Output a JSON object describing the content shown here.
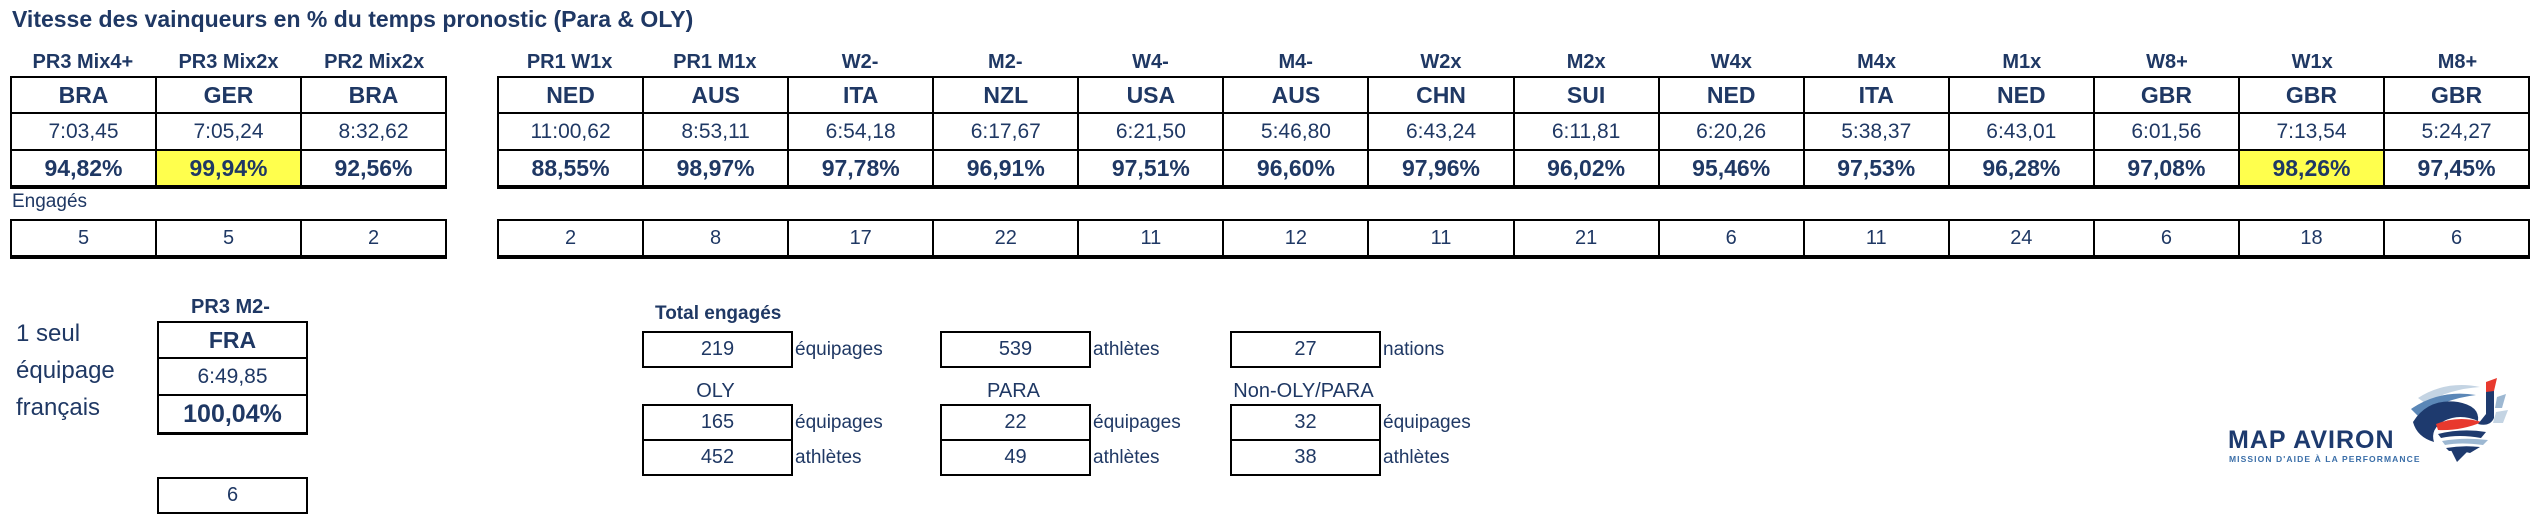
{
  "title": "Vitesse des vainqueurs en % du temps pronostic (Para & OLY)",
  "colors": {
    "text_navy": "#1F3864",
    "highlight_yellow": "#FFFF4D",
    "border_black": "#000000",
    "logo_navy": "#1d3a6e",
    "logo_red": "#e8392e",
    "logo_lightblue": "#a9c3da"
  },
  "engages_label": "Engagés",
  "para_table": {
    "columns": [
      {
        "event": "PR3 Mix4+",
        "country": "BRA",
        "time": "7:03,45",
        "pct": "94,82%",
        "highlight": false,
        "engages": "5"
      },
      {
        "event": "PR3 Mix2x",
        "country": "GER",
        "time": "7:05,24",
        "pct": "99,94%",
        "highlight": true,
        "engages": "5"
      },
      {
        "event": "PR2 Mix2x",
        "country": "BRA",
        "time": "8:32,62",
        "pct": "92,56%",
        "highlight": false,
        "engages": "2"
      }
    ]
  },
  "oly_table": {
    "columns": [
      {
        "event": "PR1 W1x",
        "country": "NED",
        "time": "11:00,62",
        "pct": "88,55%",
        "highlight": false,
        "engages": "2"
      },
      {
        "event": "PR1 M1x",
        "country": "AUS",
        "time": "8:53,11",
        "pct": "98,97%",
        "highlight": false,
        "engages": "8"
      },
      {
        "event": "W2-",
        "country": "ITA",
        "time": "6:54,18",
        "pct": "97,78%",
        "highlight": false,
        "engages": "17"
      },
      {
        "event": "M2-",
        "country": "NZL",
        "time": "6:17,67",
        "pct": "96,91%",
        "highlight": false,
        "engages": "22"
      },
      {
        "event": "W4-",
        "country": "USA",
        "time": "6:21,50",
        "pct": "97,51%",
        "highlight": false,
        "engages": "11"
      },
      {
        "event": "M4-",
        "country": "AUS",
        "time": "5:46,80",
        "pct": "96,60%",
        "highlight": false,
        "engages": "12"
      },
      {
        "event": "W2x",
        "country": "CHN",
        "time": "6:43,24",
        "pct": "97,96%",
        "highlight": false,
        "engages": "11"
      },
      {
        "event": "M2x",
        "country": "SUI",
        "time": "6:11,81",
        "pct": "96,02%",
        "highlight": false,
        "engages": "21"
      },
      {
        "event": "W4x",
        "country": "NED",
        "time": "6:20,26",
        "pct": "95,46%",
        "highlight": false,
        "engages": "6"
      },
      {
        "event": "M4x",
        "country": "ITA",
        "time": "5:38,37",
        "pct": "97,53%",
        "highlight": false,
        "engages": "11"
      },
      {
        "event": "M1x",
        "country": "NED",
        "time": "6:43,01",
        "pct": "96,28%",
        "highlight": false,
        "engages": "24"
      },
      {
        "event": "W8+",
        "country": "GBR",
        "time": "6:01,56",
        "pct": "97,08%",
        "highlight": false,
        "engages": "6"
      },
      {
        "event": "W1x",
        "country": "GBR",
        "time": "7:13,54",
        "pct": "98,26%",
        "highlight": true,
        "engages": "18"
      },
      {
        "event": "M8+",
        "country": "GBR",
        "time": "5:24,27",
        "pct": "97,45%",
        "highlight": false,
        "engages": "6"
      }
    ]
  },
  "france": {
    "note_lines": [
      "1 seul",
      "équipage",
      "français"
    ],
    "event": "PR3 M2-",
    "country": "FRA",
    "time": "6:49,85",
    "pct": "100,04%",
    "engages": "6"
  },
  "totals": {
    "title": "Total engagés",
    "overall": [
      {
        "value": "219",
        "label": "équipages"
      },
      {
        "value": "539",
        "label": "athlètes"
      },
      {
        "value": "27",
        "label": "nations"
      }
    ],
    "groups": [
      {
        "header": "OLY",
        "stats": [
          {
            "value": "165",
            "label": "équipages"
          },
          {
            "value": "452",
            "label": "athlètes"
          }
        ]
      },
      {
        "header": "PARA",
        "stats": [
          {
            "value": "22",
            "label": "équipages"
          },
          {
            "value": "49",
            "label": "athlètes"
          }
        ]
      },
      {
        "header": "Non-OLY/PARA",
        "stats": [
          {
            "value": "32",
            "label": "équipages"
          },
          {
            "value": "38",
            "label": "athlètes"
          }
        ]
      }
    ]
  },
  "logo": {
    "name": "MAP AVIRON",
    "subtitle": "MISSION D'AIDE À LA PERFORMANCE"
  }
}
